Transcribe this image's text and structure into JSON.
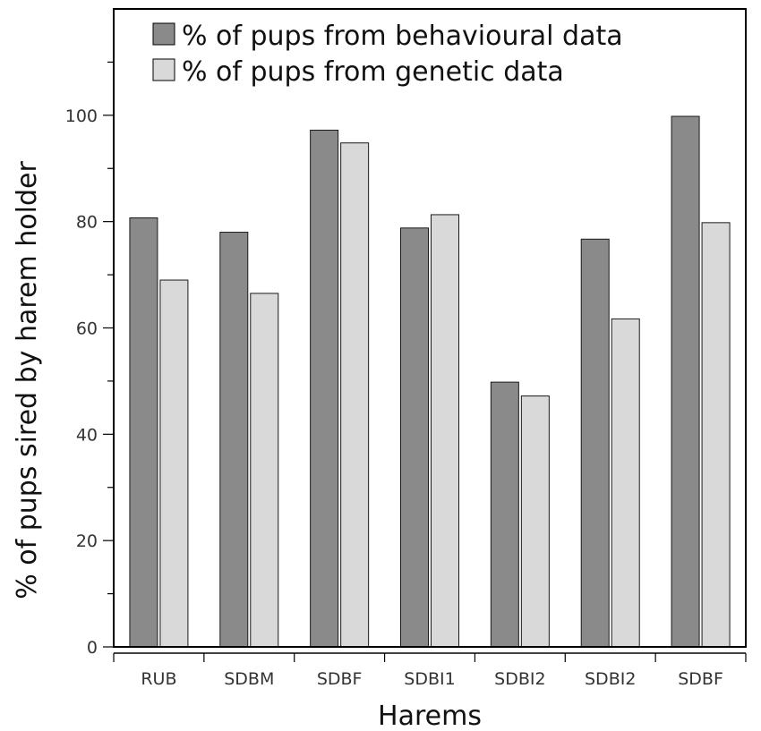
{
  "chart_data": {
    "type": "bar",
    "title": "",
    "xlabel": "Harems",
    "ylabel": "% of pups sired by harem holder",
    "categories": [
      "RUB",
      "SDBM",
      "SDBF",
      "SDBI1",
      "SDBI2",
      "SDBI2",
      "SDBF"
    ],
    "series": [
      {
        "name": "% of pups from behavioural data",
        "color": "#8a8a8a",
        "values": [
          80.7,
          78.0,
          97.2,
          78.8,
          49.8,
          76.7,
          99.8
        ]
      },
      {
        "name": "% of pups from genetic data",
        "color": "#d9d9d9",
        "values": [
          69.0,
          66.5,
          94.8,
          81.3,
          47.2,
          61.7,
          79.8
        ]
      }
    ],
    "ylim": [
      0,
      120
    ],
    "yticks": [
      0,
      20,
      40,
      60,
      80,
      100
    ],
    "ytick_labels": [
      "0",
      "20",
      "40",
      "60",
      "80",
      "100"
    ],
    "grid": false,
    "legend_position": "top"
  }
}
